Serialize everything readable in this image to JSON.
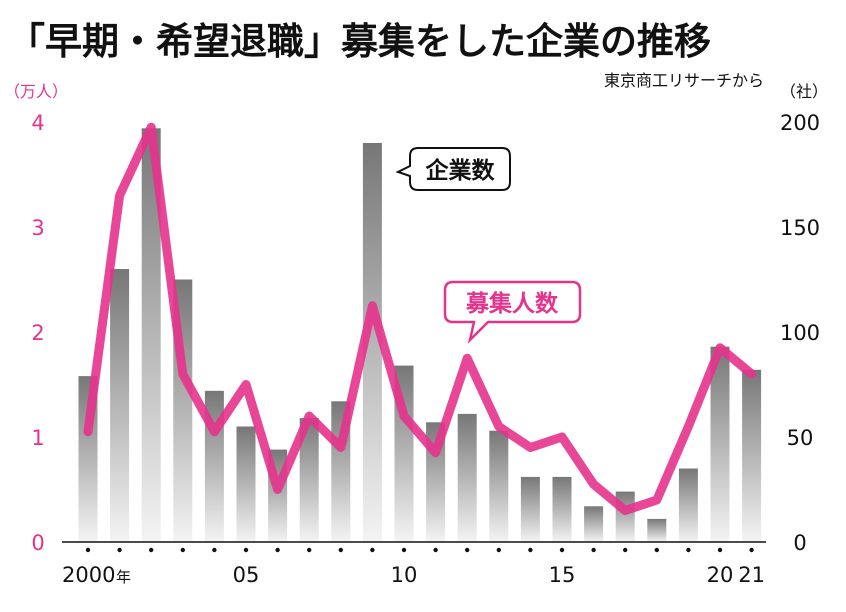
{
  "chart_data": {
    "type": "bar",
    "title": "「早期・希望退職」募集をした企業の推移",
    "source": "東京商工リサーチから",
    "x": [
      2000,
      2001,
      2002,
      2003,
      2004,
      2005,
      2006,
      2007,
      2008,
      2009,
      2010,
      2011,
      2012,
      2013,
      2014,
      2015,
      2016,
      2017,
      2018,
      2019,
      2020,
      2021
    ],
    "x_tick_labels": [
      {
        "year": 2000,
        "label": "2000"
      },
      {
        "year": 2005,
        "label": "05"
      },
      {
        "year": 2010,
        "label": "10"
      },
      {
        "year": 2015,
        "label": "15"
      },
      {
        "year": 2020,
        "label": "20"
      },
      {
        "year": 2021,
        "label": "21"
      }
    ],
    "x_unit": "年",
    "y_left": {
      "unit": "（万人）",
      "lim": [
        0,
        4
      ],
      "ticks": [
        "0",
        "1",
        "2",
        "3",
        "4"
      ]
    },
    "y_right": {
      "unit": "（社）",
      "lim": [
        0,
        200
      ],
      "ticks": [
        "0",
        "50",
        "100",
        "150",
        "200"
      ]
    },
    "series": [
      {
        "name": "企業数",
        "type": "bar",
        "axis": "right",
        "values": [
          79,
          130,
          197,
          125,
          72,
          55,
          44,
          59,
          67,
          190,
          84,
          57,
          61,
          53,
          31,
          31,
          17,
          24,
          11,
          35,
          93,
          82
        ]
      },
      {
        "name": "募集人数",
        "type": "line",
        "axis": "left",
        "values": [
          1.05,
          3.3,
          3.95,
          1.6,
          1.05,
          1.5,
          0.5,
          1.2,
          0.9,
          2.25,
          1.2,
          0.85,
          1.75,
          1.1,
          0.9,
          1.0,
          0.55,
          0.3,
          0.4,
          1.1,
          1.85,
          1.6
        ]
      }
    ],
    "colors": {
      "line": "#e5338c",
      "bar_top": "#777777",
      "bar_bottom": "#f4f4f4",
      "left_axis_text": "#e5338c",
      "right_axis_text": "#111111"
    },
    "grid": false,
    "legend": "inline-callouts"
  }
}
